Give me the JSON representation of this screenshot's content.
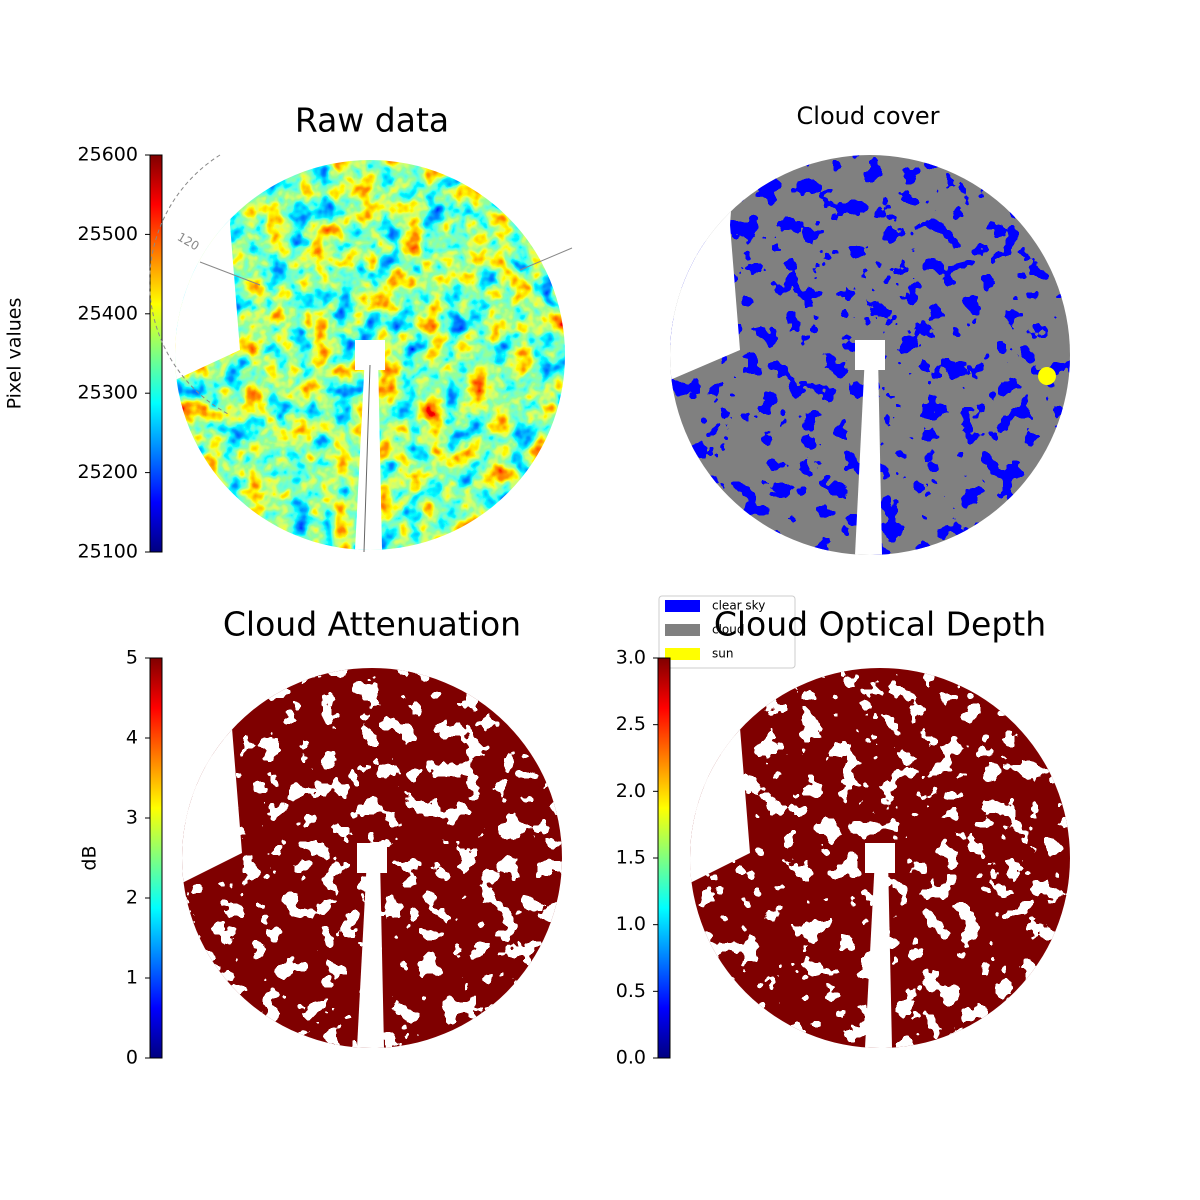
{
  "chart_data": [
    {
      "type": "image",
      "title": "Raw data",
      "colorbar_label": "Pixel values",
      "colormap": "jet",
      "ylim": [
        25100,
        25600
      ],
      "yticks": [
        25100,
        25200,
        25300,
        25400,
        25500,
        25600
      ],
      "annotations": [
        "120"
      ]
    },
    {
      "type": "mask",
      "title": "Cloud cover",
      "series": [
        {
          "name": "clear sky",
          "color": "#0000ff"
        },
        {
          "name": "cloud",
          "color": "#808080"
        },
        {
          "name": "sun",
          "color": "#ffff00"
        }
      ]
    },
    {
      "type": "image",
      "title": "Cloud Attenuation",
      "colorbar_label": "dB",
      "colormap": "jet",
      "ylim": [
        0,
        5
      ],
      "yticks": [
        0,
        1,
        2,
        3,
        4,
        5
      ]
    },
    {
      "type": "image",
      "title": "Cloud Optical Depth",
      "colormap": "jet",
      "ylim": [
        0,
        3
      ],
      "yticks": [
        {
          "value": 0,
          "label": "0.0"
        },
        {
          "value": 0.5,
          "label": "0.5"
        },
        {
          "value": 1,
          "label": "1.0"
        },
        {
          "value": 1.5,
          "label": "1.5"
        },
        {
          "value": 2,
          "label": "2.0"
        },
        {
          "value": 2.5,
          "label": "2.5"
        },
        {
          "value": 3,
          "label": "3.0"
        }
      ]
    }
  ]
}
